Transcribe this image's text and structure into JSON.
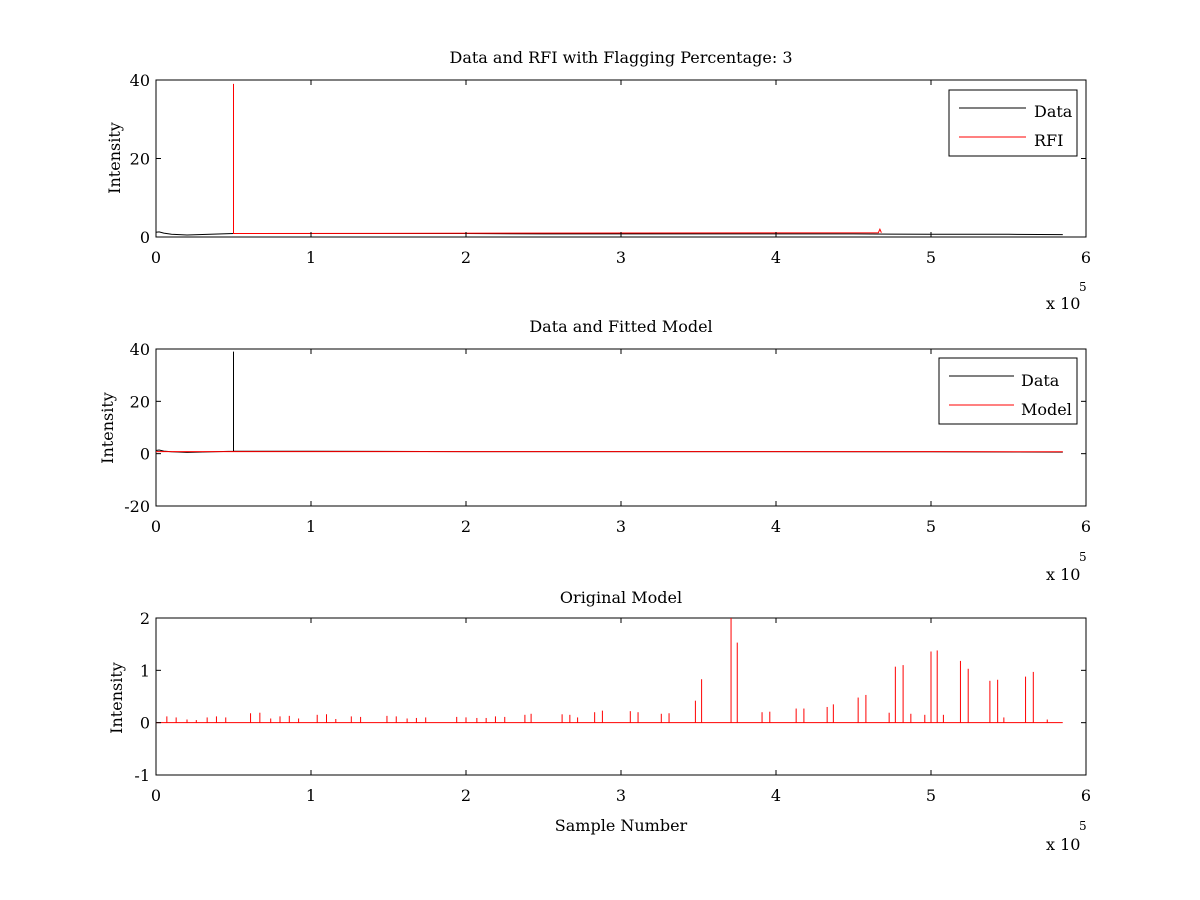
{
  "figure_background": "#ffffff",
  "colors": {
    "data": "#000000",
    "rfi": "#ff0000",
    "model": "#ff0000",
    "axes": "#000000"
  },
  "chart_data": [
    {
      "type": "line",
      "title": "Data and RFI with Flagging Percentage: 3",
      "xlabel": "",
      "ylabel": "Intensity",
      "xlim": [
        0,
        600000
      ],
      "ylim": [
        0,
        40
      ],
      "xticks": [
        0,
        100000,
        200000,
        300000,
        400000,
        500000,
        600000
      ],
      "xtick_labels": [
        "0",
        "1",
        "2",
        "3",
        "4",
        "5",
        "6"
      ],
      "yticks": [
        0,
        20,
        40
      ],
      "ytick_labels": [
        "0",
        "20",
        "40"
      ],
      "x_exponent": {
        "base": "x 10",
        "power": "5"
      },
      "grid": false,
      "legend": {
        "placement": "top-right",
        "entries": [
          "Data",
          "RFI"
        ]
      },
      "series": [
        {
          "name": "Data",
          "color": "#000000",
          "x": [
            0,
            2000,
            5000,
            10000,
            20000,
            50000,
            100000,
            150000,
            200000,
            250000,
            300000,
            350000,
            400000,
            450000,
            500000,
            550000,
            585000
          ],
          "y": [
            1.2,
            1.3,
            1.0,
            0.7,
            0.5,
            0.9,
            0.9,
            0.9,
            0.9,
            0.8,
            0.8,
            0.8,
            0.8,
            0.8,
            0.7,
            0.7,
            0.6
          ]
        },
        {
          "name": "RFI",
          "color": "#ff0000",
          "x": [
            49990,
            50000,
            50000,
            50010,
            466000,
            467000,
            468000
          ],
          "y": [
            0.9,
            0.9,
            39,
            0.9,
            1.1,
            2.0,
            1.1
          ]
        }
      ]
    },
    {
      "type": "line",
      "title": "Data and Fitted Model",
      "xlabel": "",
      "ylabel": "Intensity",
      "xlim": [
        0,
        600000
      ],
      "ylim": [
        -20,
        40
      ],
      "xticks": [
        0,
        100000,
        200000,
        300000,
        400000,
        500000,
        600000
      ],
      "xtick_labels": [
        "0",
        "1",
        "2",
        "3",
        "4",
        "5",
        "6"
      ],
      "yticks": [
        -20,
        0,
        20,
        40
      ],
      "ytick_labels": [
        "-20",
        "0",
        "20",
        "40"
      ],
      "x_exponent": {
        "base": "x 10",
        "power": "5"
      },
      "grid": false,
      "legend": {
        "placement": "top-right",
        "entries": [
          "Data",
          "Model"
        ]
      },
      "series": [
        {
          "name": "Data",
          "color": "#000000",
          "x": [
            0,
            2000,
            5000,
            10000,
            20000,
            49990,
            50000,
            50000,
            50010,
            100000,
            200000,
            300000,
            400000,
            500000,
            585000
          ],
          "y": [
            1.2,
            1.4,
            1.0,
            0.7,
            0.5,
            0.9,
            0.9,
            39,
            0.9,
            0.9,
            0.8,
            0.8,
            0.8,
            0.7,
            0.6
          ]
        },
        {
          "name": "Model",
          "color": "#ff0000",
          "x": [
            0,
            100000,
            200000,
            300000,
            400000,
            500000,
            585000
          ],
          "y": [
            0.8,
            0.8,
            0.8,
            0.8,
            0.8,
            0.8,
            0.7
          ]
        }
      ]
    },
    {
      "type": "line",
      "title": "Original Model",
      "xlabel": "Sample Number",
      "ylabel": "Intensity",
      "xlim": [
        0,
        600000
      ],
      "ylim": [
        -1,
        2
      ],
      "xticks": [
        0,
        100000,
        200000,
        300000,
        400000,
        500000,
        600000
      ],
      "xtick_labels": [
        "0",
        "1",
        "2",
        "3",
        "4",
        "5",
        "6"
      ],
      "yticks": [
        -1,
        0,
        1,
        2
      ],
      "ytick_labels": [
        "-1",
        "0",
        "1",
        "2"
      ],
      "x_exponent": {
        "base": "x 10",
        "power": "5"
      },
      "grid": false,
      "legend": null,
      "baseline": {
        "x_start": 0,
        "x_end": 585000,
        "y": 0.0
      },
      "series": [
        {
          "color": "#ff0000",
          "spikes": [
            [
              7000,
              0.12
            ],
            [
              13000,
              0.1
            ],
            [
              20000,
              0.06
            ],
            [
              26000,
              0.05
            ],
            [
              33000,
              0.1
            ],
            [
              39000,
              0.12
            ],
            [
              45000,
              0.1
            ],
            [
              61000,
              0.18
            ],
            [
              67000,
              0.19
            ],
            [
              74000,
              0.08
            ],
            [
              80000,
              0.12
            ],
            [
              86000,
              0.13
            ],
            [
              92000,
              0.08
            ],
            [
              104000,
              0.15
            ],
            [
              110000,
              0.16
            ],
            [
              116000,
              0.07
            ],
            [
              126000,
              0.12
            ],
            [
              132000,
              0.11
            ],
            [
              149000,
              0.13
            ],
            [
              155000,
              0.12
            ],
            [
              162000,
              0.08
            ],
            [
              168000,
              0.09
            ],
            [
              174000,
              0.1
            ],
            [
              194000,
              0.11
            ],
            [
              200000,
              0.1
            ],
            [
              207000,
              0.09
            ],
            [
              213000,
              0.09
            ],
            [
              219000,
              0.12
            ],
            [
              225000,
              0.11
            ],
            [
              238000,
              0.15
            ],
            [
              242000,
              0.17
            ],
            [
              262000,
              0.16
            ],
            [
              267000,
              0.15
            ],
            [
              272000,
              0.1
            ],
            [
              283000,
              0.2
            ],
            [
              288000,
              0.23
            ],
            [
              306000,
              0.22
            ],
            [
              311000,
              0.2
            ],
            [
              326000,
              0.17
            ],
            [
              331000,
              0.18
            ],
            [
              348000,
              0.42
            ],
            [
              352000,
              0.83
            ],
            [
              371000,
              2.0
            ],
            [
              375000,
              1.53
            ],
            [
              391000,
              0.2
            ],
            [
              396000,
              0.21
            ],
            [
              413000,
              0.27
            ],
            [
              418000,
              0.27
            ],
            [
              433000,
              0.3
            ],
            [
              437000,
              0.35
            ],
            [
              453000,
              0.48
            ],
            [
              458000,
              0.53
            ],
            [
              473000,
              0.19
            ],
            [
              477000,
              1.07
            ],
            [
              482000,
              1.1
            ],
            [
              487000,
              0.17
            ],
            [
              496000,
              0.15
            ],
            [
              500000,
              1.36
            ],
            [
              504000,
              1.38
            ],
            [
              508000,
              0.15
            ],
            [
              519000,
              1.18
            ],
            [
              524000,
              1.03
            ],
            [
              538000,
              0.8
            ],
            [
              543000,
              0.82
            ],
            [
              547000,
              0.1
            ],
            [
              561000,
              0.88
            ],
            [
              566000,
              0.97
            ],
            [
              575000,
              0.06
            ]
          ]
        }
      ]
    }
  ]
}
